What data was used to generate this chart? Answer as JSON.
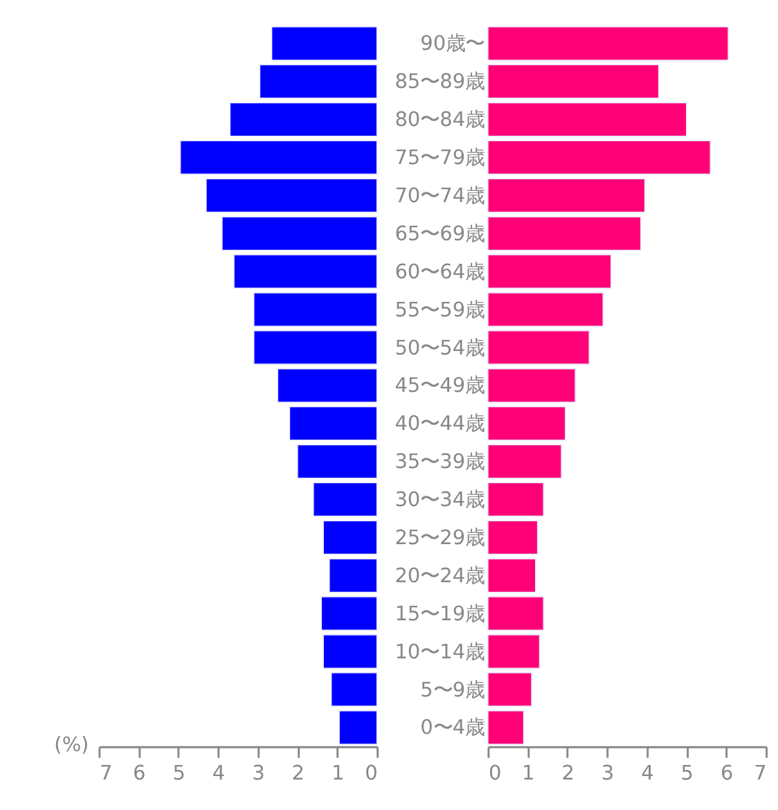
{
  "chart_data": [
    {
      "type": "bar",
      "orientation": "horizontal",
      "xlabel": "(%)",
      "grid": false,
      "legend": false,
      "categories": [
        "90歳〜",
        "85〜89歳",
        "80〜84歳",
        "75〜79歳",
        "70〜74歳",
        "65〜69歳",
        "60〜64歳",
        "55〜59歳",
        "50〜54歳",
        "45〜49歳",
        "40〜44歳",
        "35〜39歳",
        "30〜34歳",
        "25〜29歳",
        "20〜24歳",
        "15〜19歳",
        "10〜14歳",
        "5〜9歳",
        "0〜4歳"
      ],
      "series": [
        {
          "color": "#0000ff",
          "values": [
            2.65,
            2.95,
            3.7,
            4.95,
            4.3,
            3.9,
            3.6,
            3.1,
            3.1,
            2.5,
            2.2,
            2.0,
            1.6,
            1.35,
            1.2,
            1.4,
            1.35,
            1.15,
            0.95
          ]
        }
      ],
      "xlim": [
        7,
        0
      ],
      "xticks": [
        7,
        6,
        5,
        4,
        3,
        2,
        1,
        0
      ]
    },
    {
      "type": "bar",
      "orientation": "horizontal",
      "tick_labels": "x",
      "grid": false,
      "legend": false,
      "categories": [
        null,
        null,
        null,
        null,
        null,
        null,
        null,
        null,
        null,
        null,
        null,
        null,
        null,
        null,
        null,
        null,
        null,
        null,
        null
      ],
      "series": [
        {
          "color": "#ff0077",
          "values": [
            6.05,
            4.3,
            5.0,
            5.6,
            3.95,
            3.85,
            3.1,
            2.9,
            2.55,
            2.2,
            1.95,
            1.85,
            1.4,
            1.25,
            1.2,
            1.4,
            1.3,
            1.1,
            0.9
          ]
        }
      ],
      "xlim": [
        0,
        7
      ],
      "xticks": [
        0,
        1,
        2,
        3,
        4,
        5,
        6,
        7
      ]
    }
  ]
}
